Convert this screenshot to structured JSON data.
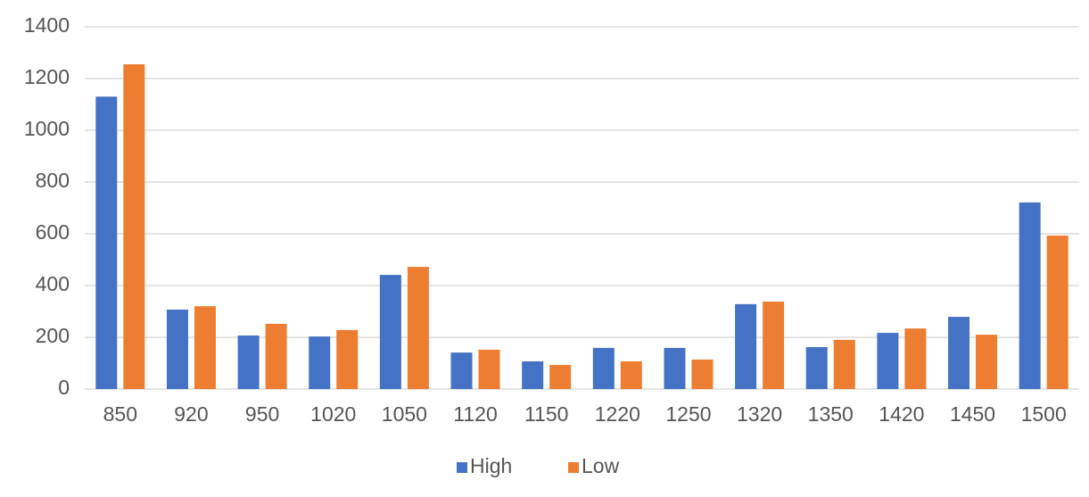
{
  "chart_data": {
    "type": "bar",
    "categories": [
      "850",
      "920",
      "950",
      "1020",
      "1050",
      "1120",
      "1150",
      "1220",
      "1250",
      "1320",
      "1350",
      "1420",
      "1450",
      "1500"
    ],
    "series": [
      {
        "name": "High",
        "color": "#4472c4",
        "values": [
          1130,
          307,
          207,
          203,
          441,
          141,
          107,
          159,
          159,
          328,
          162,
          217,
          279,
          721
        ]
      },
      {
        "name": "Low",
        "color": "#ed7d31",
        "values": [
          1255,
          320,
          252,
          228,
          472,
          152,
          93,
          107,
          114,
          338,
          190,
          234,
          210,
          593
        ]
      }
    ],
    "ylim": [
      0,
      1400
    ],
    "yticks": [
      0,
      200,
      400,
      600,
      800,
      1000,
      1200,
      1400
    ],
    "grid": true,
    "legend": "bottom"
  }
}
